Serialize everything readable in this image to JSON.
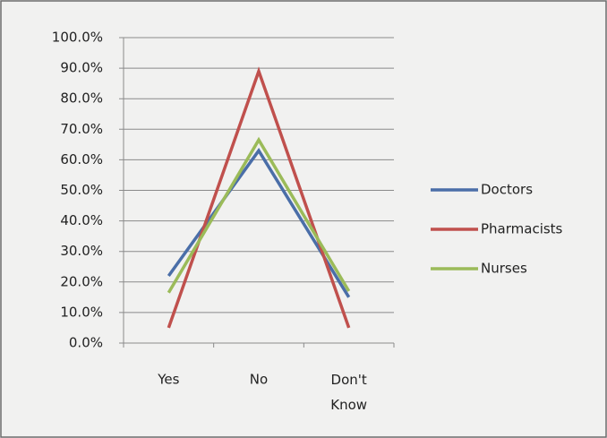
{
  "chart_data": {
    "type": "line",
    "categories": [
      "Yes",
      "No",
      "Don't Know"
    ],
    "series": [
      {
        "name": "Doctors",
        "color": "#4a6ea8",
        "values": [
          22,
          63,
          15
        ]
      },
      {
        "name": "Pharmacists",
        "color": "#c0504d",
        "values": [
          5,
          89,
          5
        ]
      },
      {
        "name": "Nurses",
        "color": "#9bbb59",
        "values": [
          16.5,
          66.5,
          17
        ]
      }
    ],
    "ylim": [
      0,
      100
    ],
    "yticks": [
      {
        "value": 0,
        "label": "0.0%"
      },
      {
        "value": 10,
        "label": "10.0%"
      },
      {
        "value": 20,
        "label": "20.0%"
      },
      {
        "value": 30,
        "label": "30.0%"
      },
      {
        "value": 40,
        "label": "40.0%"
      },
      {
        "value": 50,
        "label": "50.0%"
      },
      {
        "value": 60,
        "label": "60.0%"
      },
      {
        "value": 70,
        "label": "70.0%"
      },
      {
        "value": 80,
        "label": "80.0%"
      },
      {
        "value": 90,
        "label": "90.0%"
      },
      {
        "value": 100,
        "label": "100.0%"
      }
    ],
    "grid": true,
    "legend": "right"
  }
}
